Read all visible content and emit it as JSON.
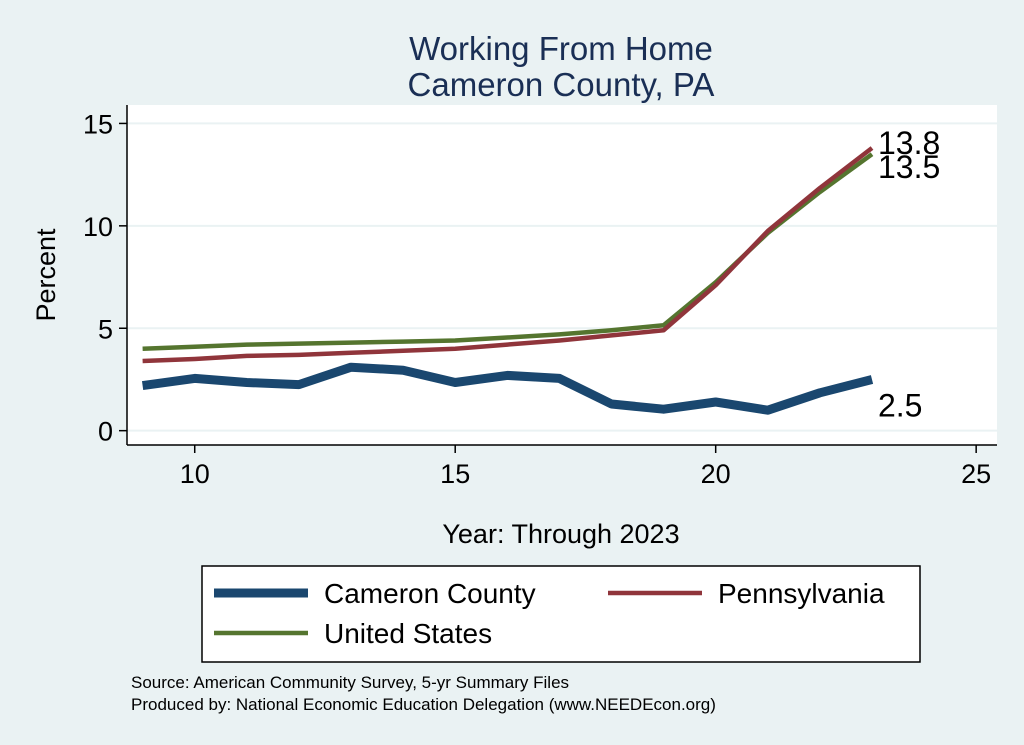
{
  "chart_data": {
    "type": "line",
    "title": "Working From Home",
    "subtitle": "Cameron County, PA",
    "xlabel": "Year: Through 2023",
    "ylabel": "Percent",
    "xlim": [
      8.7,
      25.4
    ],
    "ylim": [
      -0.7,
      15.9
    ],
    "xticks": [
      10,
      15,
      20,
      25
    ],
    "yticks": [
      0,
      5,
      10,
      15
    ],
    "grid": true,
    "legend_position": "bottom",
    "x": [
      9,
      10,
      11,
      12,
      13,
      14,
      15,
      16,
      17,
      18,
      19,
      20,
      21,
      22,
      23
    ],
    "series": [
      {
        "name": "Cameron County",
        "color": "#1a476f",
        "values": [
          2.2,
          2.55,
          2.35,
          2.25,
          3.1,
          2.95,
          2.35,
          2.7,
          2.55,
          1.3,
          1.05,
          1.4,
          1.0,
          1.85,
          2.5
        ],
        "end_label": "2.5"
      },
      {
        "name": "Pennsylvania",
        "color": "#90353b",
        "values": [
          3.4,
          3.5,
          3.65,
          3.7,
          3.8,
          3.9,
          4.0,
          4.2,
          4.4,
          4.65,
          4.9,
          7.1,
          9.75,
          11.85,
          13.8
        ],
        "end_label": "13.8"
      },
      {
        "name": "United States",
        "color": "#55752f",
        "values": [
          4.0,
          4.1,
          4.2,
          4.25,
          4.3,
          4.35,
          4.4,
          4.55,
          4.7,
          4.9,
          5.15,
          7.25,
          9.65,
          11.65,
          13.5
        ],
        "end_label": "13.5"
      }
    ],
    "notes": [
      "Source: American Community Survey, 5-yr Summary Files",
      "Produced by: National Economic Education Delegation (www.NEEDEcon.org)"
    ]
  }
}
